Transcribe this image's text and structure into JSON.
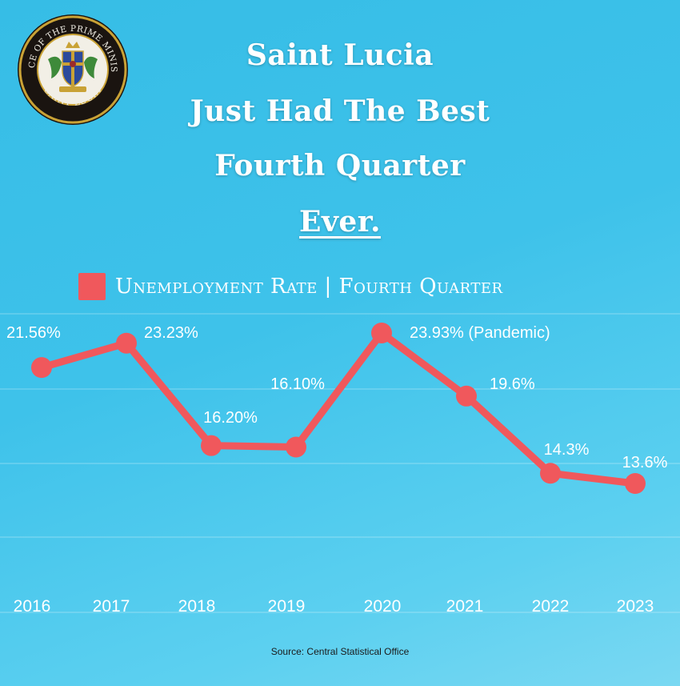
{
  "header": {
    "line1": "Saint Lucia",
    "line2": "Just Had The Best",
    "line3": "Fourth Quarter",
    "line4": "Ever."
  },
  "logo": {
    "top_text": "OFFICE OF THE PRIME MINISTER",
    "bottom_text": "SAINT LUCIA",
    "icon": "coat-of-arms-seal"
  },
  "legend": {
    "label": "Unemployment Rate | Fourth Quarter",
    "color": "#f0585c"
  },
  "source": "Source: Central Statistical Office",
  "colors": {
    "background": "#3ec2ea",
    "line": "#f0585c",
    "text": "#ffffff"
  },
  "chart_data": {
    "type": "line",
    "categories": [
      "2016",
      "2017",
      "2018",
      "2019",
      "2020",
      "2021",
      "2022",
      "2023"
    ],
    "series": [
      {
        "name": "Unemployment Rate | Fourth Quarter",
        "values": [
          21.56,
          23.23,
          16.2,
          16.1,
          23.93,
          19.6,
          14.3,
          13.6
        ],
        "labels": [
          "21.56%",
          "23.23%",
          "16.20%",
          "16.10%",
          "23.93% (Pandemic)",
          "19.6%",
          "14.3%",
          "13.6%"
        ]
      }
    ],
    "title": "",
    "xlabel": "",
    "ylabel": "",
    "grid": true,
    "legend": "top-left"
  }
}
